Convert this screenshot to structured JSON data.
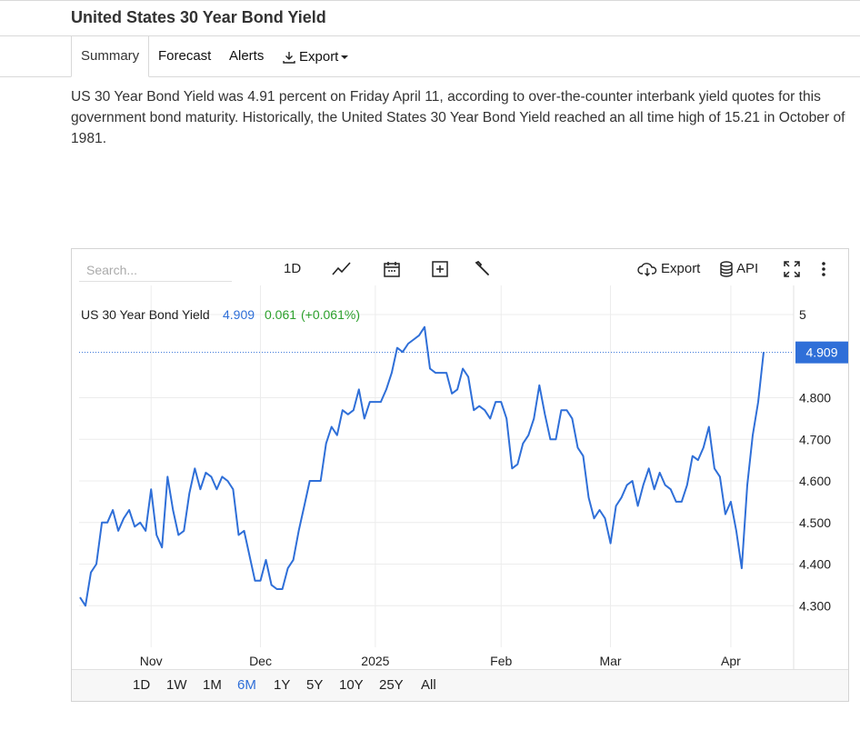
{
  "header": {
    "title": "United States 30 Year Bond Yield"
  },
  "tabs": [
    {
      "label": "Summary",
      "active": true
    },
    {
      "label": "Forecast"
    },
    {
      "label": "Alerts"
    },
    {
      "label": "Export",
      "icon": "download-icon",
      "dropdown": true
    }
  ],
  "description": "US 30 Year Bond Yield was 4.91 percent on Friday April 11, according to over-the-counter interbank yield quotes for this government bond maturity. Historically, the United States 30 Year Bond Yield reached an all time high of 15.21 in October of 1981.",
  "toolbar": {
    "search_placeholder": "Search...",
    "interval_label": "1D",
    "chart_type_icon": "line-chart-icon",
    "calendar_icon": "calendar-icon",
    "add_icon": "add-indicator-icon",
    "settings_icon": "wrench-icon",
    "export_label": "Export",
    "export_icon": "cloud-download-icon",
    "api_label": "API",
    "api_icon": "database-icon",
    "fullscreen_icon": "fullscreen-icon",
    "more_icon": "more-vertical-icon"
  },
  "legend": {
    "name": "US 30 Year Bond Yield",
    "value": "4.909",
    "change": "0.061",
    "change_pct": "(+0.061%)"
  },
  "range_buttons": [
    {
      "label": "1D"
    },
    {
      "label": "1W"
    },
    {
      "label": "1M"
    },
    {
      "label": "6M",
      "active": true
    },
    {
      "label": "1Y"
    },
    {
      "label": "5Y"
    },
    {
      "label": "10Y"
    },
    {
      "label": "25Y"
    },
    {
      "label": "All"
    }
  ],
  "colors": {
    "line": "#2f6fd8",
    "positive": "#2ca02c",
    "accent": "#2f6fd8"
  },
  "chart_data": {
    "type": "line",
    "series": [
      {
        "name": "US 30 Year Bond Yield",
        "x": [
          0,
          1,
          2,
          3,
          4,
          5,
          6,
          7,
          8,
          9,
          10,
          11,
          12,
          13,
          14,
          15,
          16,
          17,
          18,
          19,
          20,
          21,
          22,
          23,
          24,
          25,
          26,
          27,
          28,
          29,
          30,
          31,
          32,
          33,
          34,
          35,
          36,
          37,
          38,
          39,
          40,
          41,
          42,
          43,
          44,
          45,
          46,
          47,
          48,
          49,
          50,
          51,
          52,
          53,
          54,
          55,
          56,
          57,
          58,
          59,
          60,
          61,
          62,
          63,
          64,
          65,
          66,
          67,
          68,
          69,
          70,
          71,
          72,
          73,
          74,
          75,
          76,
          77,
          78,
          79,
          80,
          81,
          82,
          83,
          84,
          85,
          86,
          87,
          88,
          89,
          90,
          91,
          92,
          93,
          94,
          95,
          96,
          97,
          98,
          99,
          100,
          101,
          102,
          103,
          104,
          105,
          106,
          107,
          108,
          109,
          110,
          111,
          112,
          113,
          114,
          115,
          116,
          117,
          118,
          119,
          120,
          121,
          122,
          123,
          124,
          125
        ],
        "values": [
          4.32,
          4.3,
          4.38,
          4.4,
          4.5,
          4.5,
          4.53,
          4.48,
          4.51,
          4.53,
          4.49,
          4.5,
          4.48,
          4.58,
          4.47,
          4.44,
          4.61,
          4.53,
          4.47,
          4.48,
          4.57,
          4.63,
          4.58,
          4.62,
          4.61,
          4.58,
          4.61,
          4.6,
          4.58,
          4.47,
          4.48,
          4.42,
          4.36,
          4.36,
          4.41,
          4.35,
          4.34,
          4.34,
          4.39,
          4.41,
          4.48,
          4.54,
          4.6,
          4.6,
          4.6,
          4.69,
          4.73,
          4.71,
          4.77,
          4.76,
          4.77,
          4.82,
          4.75,
          4.79,
          4.79,
          4.79,
          4.82,
          4.86,
          4.92,
          4.91,
          4.93,
          4.94,
          4.95,
          4.97,
          4.87,
          4.86,
          4.86,
          4.86,
          4.81,
          4.82,
          4.87,
          4.85,
          4.77,
          4.78,
          4.77,
          4.75,
          4.79,
          4.79,
          4.75,
          4.63,
          4.64,
          4.69,
          4.71,
          4.75,
          4.83,
          4.76,
          4.7,
          4.7,
          4.77,
          4.77,
          4.75,
          4.68,
          4.66,
          4.56,
          4.51,
          4.53,
          4.51,
          4.45,
          4.54,
          4.56,
          4.59,
          4.6,
          4.54,
          4.59,
          4.63,
          4.58,
          4.62,
          4.59,
          4.58,
          4.55,
          4.55,
          4.59,
          4.66,
          4.65,
          4.68,
          4.73,
          4.63,
          4.61,
          4.52,
          4.55,
          4.48,
          4.39,
          4.59,
          4.71,
          4.79,
          4.91
        ]
      }
    ],
    "x_tick_labels": [
      {
        "label": "Nov",
        "x": 13
      },
      {
        "label": "Dec",
        "x": 33
      },
      {
        "label": "2025",
        "x": 54
      },
      {
        "label": "Feb",
        "x": 77
      },
      {
        "label": "Mar",
        "x": 97
      },
      {
        "label": "Apr",
        "x": 119
      }
    ],
    "y_tick_labels": [
      "5",
      "4.800",
      "4.700",
      "4.600",
      "4.500",
      "4.400",
      "4.300"
    ],
    "y_ticks": [
      5,
      4.8,
      4.7,
      4.6,
      4.5,
      4.4,
      4.3
    ],
    "ylim": [
      4.2,
      5.07
    ],
    "last_value_label": "4.909",
    "last_value": 4.909,
    "grid": true
  }
}
